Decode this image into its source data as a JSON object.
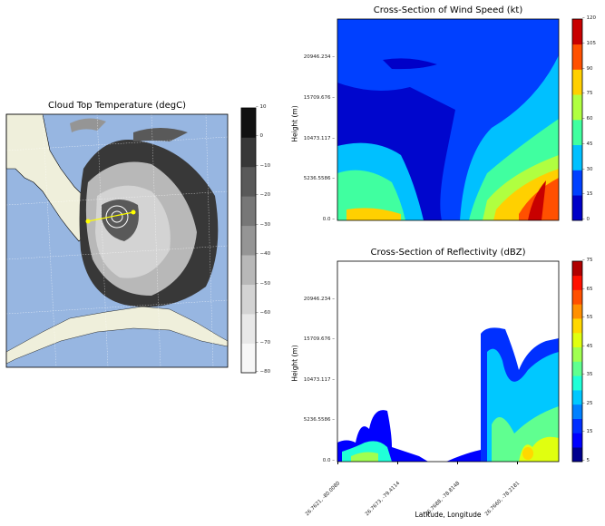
{
  "chart_data": [
    {
      "type": "heatmap",
      "title": "Cloud Top Temperature (degC)",
      "colorbar": {
        "levels": [
          -80,
          -70,
          -60,
          -50,
          -40,
          -30,
          -20,
          -10,
          0,
          10
        ],
        "tick_labels": [
          "−80",
          "−70",
          "−60",
          "−50",
          "−40",
          "−30",
          "−20",
          "−10",
          "0",
          "10"
        ],
        "colors": [
          "#f7f7f7",
          "#e8e8e8",
          "#d3d3d3",
          "#b8b8b8",
          "#959595",
          "#777777",
          "#595959",
          "#383838",
          "#111111"
        ]
      },
      "map_colors": {
        "ocean": "#97b6e1",
        "land": "#efefdb",
        "cross_section_line": "#ffff00"
      },
      "grid": true
    },
    {
      "type": "heatmap",
      "title": "Cross-Section of Wind Speed (kt)",
      "ylabel": "Height (m)",
      "yticks": [
        "0.0",
        "5236.5586",
        "10473.117",
        "15709.676",
        "20946.234"
      ],
      "colorbar": {
        "levels": [
          0,
          15,
          30,
          45,
          60,
          75,
          90,
          105,
          120
        ],
        "tick_labels": [
          "0",
          "15",
          "30",
          "45",
          "60",
          "75",
          "90",
          "105",
          "120"
        ],
        "colors": [
          "#0000c8",
          "#0040ff",
          "#00c0ff",
          "#40ffa0",
          "#b0ff40",
          "#ffd000",
          "#ff5000",
          "#c80000"
        ]
      }
    },
    {
      "type": "heatmap",
      "title": "Cross-Section of Reflectivity (dBZ)",
      "xlabel": "Latitude, Longitude",
      "ylabel": "Height (m)",
      "xticks": [
        "26.7621, -80.0080",
        "26.7673, -79.4114",
        "26.7688, -78.8148",
        "26.7660, -78.2181"
      ],
      "yticks": [
        "0.0",
        "5236.5586",
        "10473.117",
        "15709.676",
        "20946.234"
      ],
      "colorbar": {
        "levels": [
          5,
          10,
          15,
          20,
          25,
          30,
          35,
          40,
          45,
          50,
          55,
          60,
          65,
          70,
          75
        ],
        "tick_labels": [
          "5",
          "",
          "15",
          "",
          "25",
          "",
          "35",
          "",
          "45",
          "",
          "55",
          "",
          "65",
          "",
          "75"
        ],
        "colors": [
          "#00008f",
          "#0000ff",
          "#0030ff",
          "#0080ff",
          "#00c8ff",
          "#20ffd8",
          "#60ff90",
          "#a0ff50",
          "#e0ff10",
          "#ffd800",
          "#ff9000",
          "#ff5000",
          "#ff1000",
          "#b00000"
        ]
      }
    }
  ]
}
